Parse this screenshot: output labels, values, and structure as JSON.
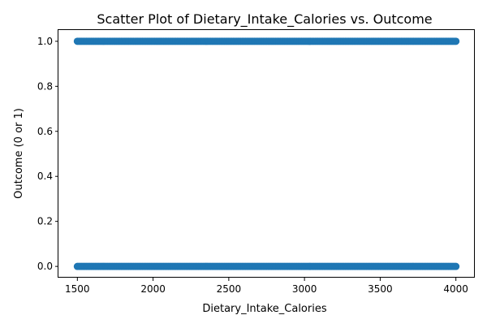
{
  "chart_data": {
    "type": "scatter",
    "title": "Scatter Plot of Dietary_Intake_Calories vs. Outcome",
    "xlabel": "Dietary_Intake_Calories",
    "ylabel": "Outcome (0 or 1)",
    "xlim": [
      1375,
      4125
    ],
    "ylim": [
      -0.05,
      1.05
    ],
    "xticks": [
      1500,
      2000,
      2500,
      3000,
      3500,
      4000
    ],
    "xtick_labels": [
      "1500",
      "2000",
      "2500",
      "3000",
      "3500",
      "4000"
    ],
    "yticks": [
      0.0,
      0.2,
      0.4,
      0.6,
      0.8,
      1.0
    ],
    "ytick_labels": [
      "0.0",
      "0.2",
      "0.4",
      "0.6",
      "0.8",
      "1.0"
    ],
    "grid": false,
    "color": "#1f77b4",
    "series": [
      {
        "x_range": [
          1500,
          4000
        ],
        "y_values": [
          0,
          1
        ]
      }
    ]
  }
}
